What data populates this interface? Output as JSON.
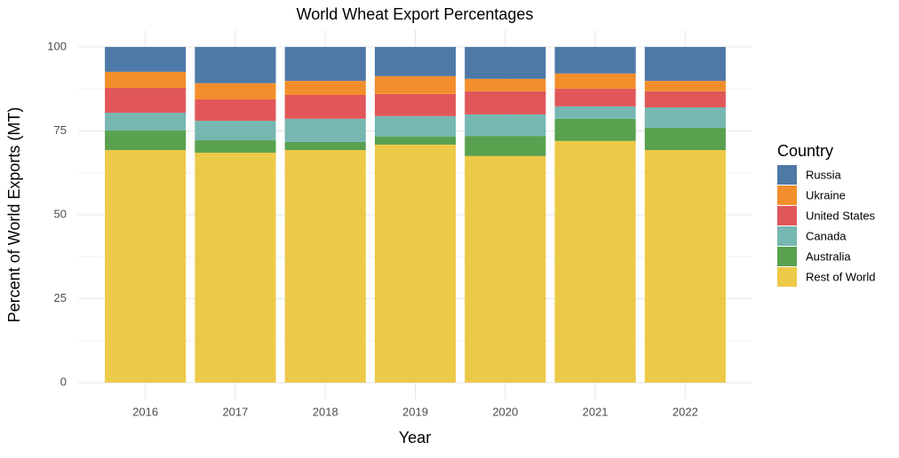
{
  "chart_data": {
    "type": "stacked_bar",
    "title": "World Wheat Export Percentages",
    "x_label": "Year",
    "y_label": "Percent of World Exports (MT)",
    "legend_title": "Country",
    "categories": [
      "2016",
      "2017",
      "2018",
      "2019",
      "2020",
      "2021",
      "2022"
    ],
    "series": [
      {
        "name": "Russia",
        "color": "#4e79a7",
        "values": [
          7.4,
          10.8,
          10.1,
          8.7,
          9.5,
          7.9,
          10.1
        ]
      },
      {
        "name": "Ukraine",
        "color": "#f28e2b",
        "values": [
          4.8,
          4.8,
          4.2,
          5.3,
          3.7,
          4.5,
          3.1
        ]
      },
      {
        "name": "United States",
        "color": "#e15759",
        "values": [
          7.4,
          6.4,
          7.1,
          6.6,
          6.9,
          5.3,
          4.8
        ]
      },
      {
        "name": "Canada",
        "color": "#76b7b2",
        "values": [
          5.3,
          5.8,
          6.9,
          6.1,
          6.4,
          3.7,
          6.1
        ]
      },
      {
        "name": "Australia",
        "color": "#59a14f",
        "values": [
          5.8,
          3.7,
          2.4,
          2.4,
          6.0,
          6.6,
          6.6
        ]
      },
      {
        "name": "Rest of World",
        "color": "#edc948",
        "values": [
          69.3,
          68.5,
          69.3,
          70.9,
          67.5,
          72.0,
          69.3
        ]
      }
    ],
    "ylim": [
      -5,
      105
    ],
    "yticks": [
      0,
      25,
      50,
      75,
      100
    ],
    "grid": true,
    "legend": "right"
  }
}
